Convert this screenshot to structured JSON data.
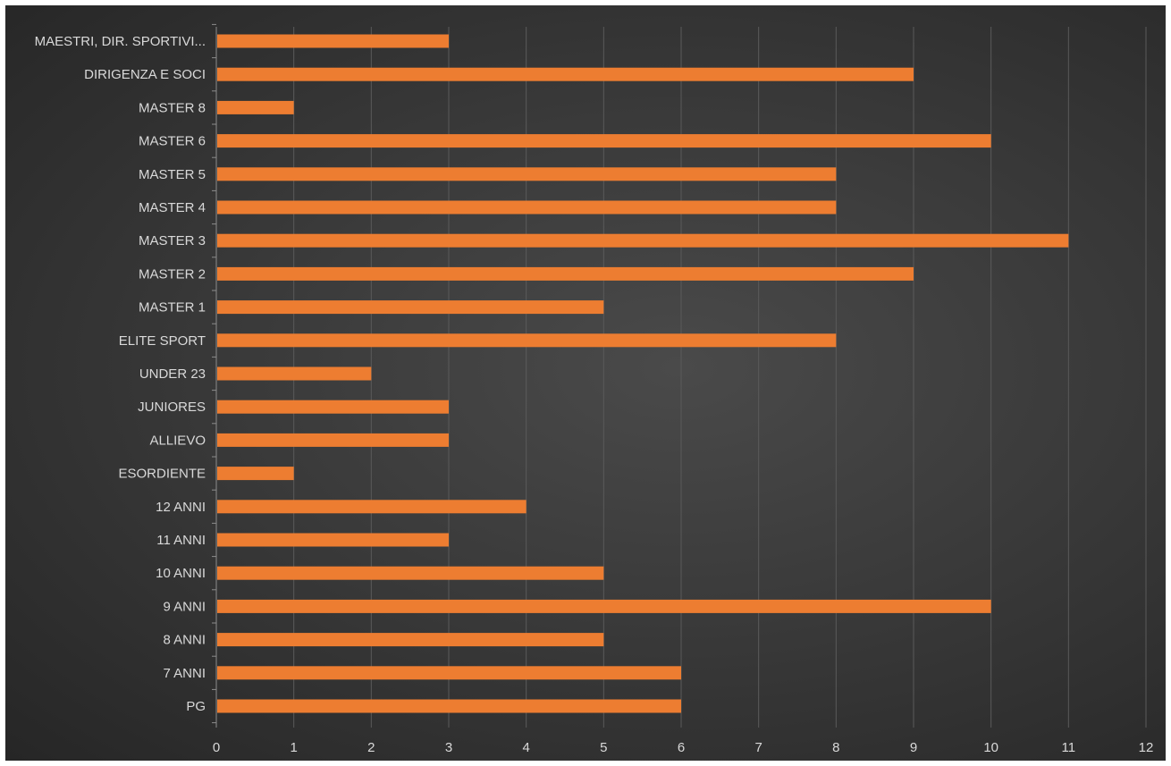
{
  "chart_data": {
    "type": "bar",
    "orientation": "horizontal",
    "title": "",
    "xlabel": "",
    "ylabel": "",
    "categories": [
      "MAESTRI, DIR. SPORTIVI...",
      "DIRIGENZA E SOCI",
      "MASTER 8",
      "MASTER 6",
      "MASTER 5",
      "MASTER 4",
      "MASTER 3",
      "MASTER 2",
      "MASTER 1",
      "ELITE SPORT",
      "UNDER 23",
      "JUNIORES",
      "ALLIEVO",
      "ESORDIENTE",
      "12 ANNI",
      "11 ANNI",
      "10 ANNI",
      "9 ANNI",
      "8 ANNI",
      "7 ANNI",
      "PG"
    ],
    "values": [
      3,
      9,
      1,
      10,
      8,
      8,
      11,
      9,
      5,
      8,
      2,
      3,
      3,
      1,
      4,
      3,
      5,
      10,
      5,
      6,
      6
    ],
    "xlim": [
      0,
      12
    ],
    "xticks": [
      "0",
      "1",
      "2",
      "3",
      "4",
      "5",
      "6",
      "7",
      "8",
      "9",
      "10",
      "11",
      "12"
    ],
    "grid": "vertical",
    "legend": "none",
    "colors": {
      "bar": "#ed7d31",
      "background": "#3a3a3a",
      "gridline": "#5a5a5a",
      "text": "#d9d9d9",
      "axis": "#8c8c8c"
    }
  }
}
